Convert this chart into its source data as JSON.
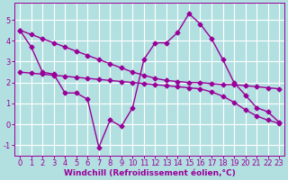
{
  "bg_color": "#b2e0e0",
  "grid_color": "#ffffff",
  "line_color": "#990099",
  "marker": "D",
  "markersize": 2.5,
  "linewidth": 1.0,
  "xlabel": "Windchill (Refroidissement éolien,°C)",
  "xlabel_fontsize": 6.5,
  "xlabel_color": "#990099",
  "tick_color": "#990099",
  "tick_fontsize": 6.0,
  "ylim": [
    -1.5,
    5.8
  ],
  "xlim": [
    -0.5,
    23.5
  ],
  "yticks": [
    -1,
    0,
    1,
    2,
    3,
    4,
    5
  ],
  "xticks": [
    0,
    1,
    2,
    3,
    4,
    5,
    6,
    7,
    8,
    9,
    10,
    11,
    12,
    13,
    14,
    15,
    16,
    17,
    18,
    19,
    20,
    21,
    22,
    23
  ],
  "series": [
    [
      4.5,
      3.7,
      2.5,
      2.4,
      1.5,
      1.5,
      1.2,
      -1.1,
      0.2,
      -0.1,
      0.8,
      3.1,
      3.9,
      3.9,
      4.4,
      5.3,
      4.8,
      4.1,
      3.1,
      2.0,
      1.4,
      0.8,
      0.6,
      0.1
    ],
    [
      4.5,
      4.3,
      4.1,
      3.9,
      3.7,
      3.5,
      3.3,
      3.1,
      2.9,
      2.7,
      2.5,
      2.35,
      2.2,
      2.1,
      2.05,
      2.0,
      2.0,
      1.95,
      1.9,
      1.9,
      1.85,
      1.8,
      1.75,
      1.7
    ],
    [
      2.5,
      2.45,
      2.4,
      2.35,
      2.3,
      2.25,
      2.2,
      2.15,
      2.1,
      2.05,
      2.0,
      1.95,
      1.9,
      1.85,
      1.8,
      1.75,
      1.7,
      1.55,
      1.35,
      1.05,
      0.7,
      0.4,
      0.2,
      0.05
    ]
  ]
}
